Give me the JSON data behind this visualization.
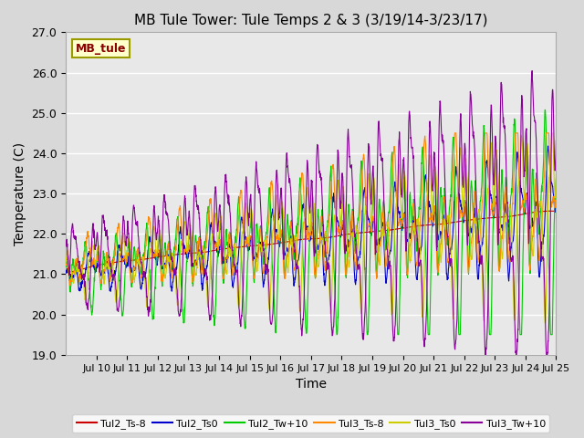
{
  "title": "MB Tule Tower: Tule Temps 2 & 3 (3/19/14-3/23/17)",
  "xlabel": "Time",
  "ylabel": "Temperature (C)",
  "ylim": [
    19.0,
    27.0
  ],
  "yticks": [
    19.0,
    20.0,
    21.0,
    22.0,
    23.0,
    24.0,
    25.0,
    26.0,
    27.0
  ],
  "xtick_labels": [
    "Jul 10",
    "Jul 11",
    "Jul 12",
    "Jul 13",
    "Jul 14",
    "Jul 15",
    "Jul 16",
    "Jul 17",
    "Jul 18",
    "Jul 19",
    "Jul 20",
    "Jul 21",
    "Jul 22",
    "Jul 23",
    "Jul 24",
    "Jul 25"
  ],
  "series_colors": {
    "Tul2_Ts-8": "#cc0000",
    "Tul2_Ts0": "#0000cc",
    "Tul2_Tw+10": "#00cc00",
    "Tul3_Ts-8": "#ff8800",
    "Tul3_Ts0": "#cccc00",
    "Tul3_Tw+10": "#880099"
  },
  "plot_bg_color": "#e8e8e8",
  "fig_bg_color": "#d8d8d8",
  "annotation_text": "MB_tule",
  "annotation_color": "#880000",
  "annotation_bg": "#ffffcc",
  "annotation_border": "#999900"
}
